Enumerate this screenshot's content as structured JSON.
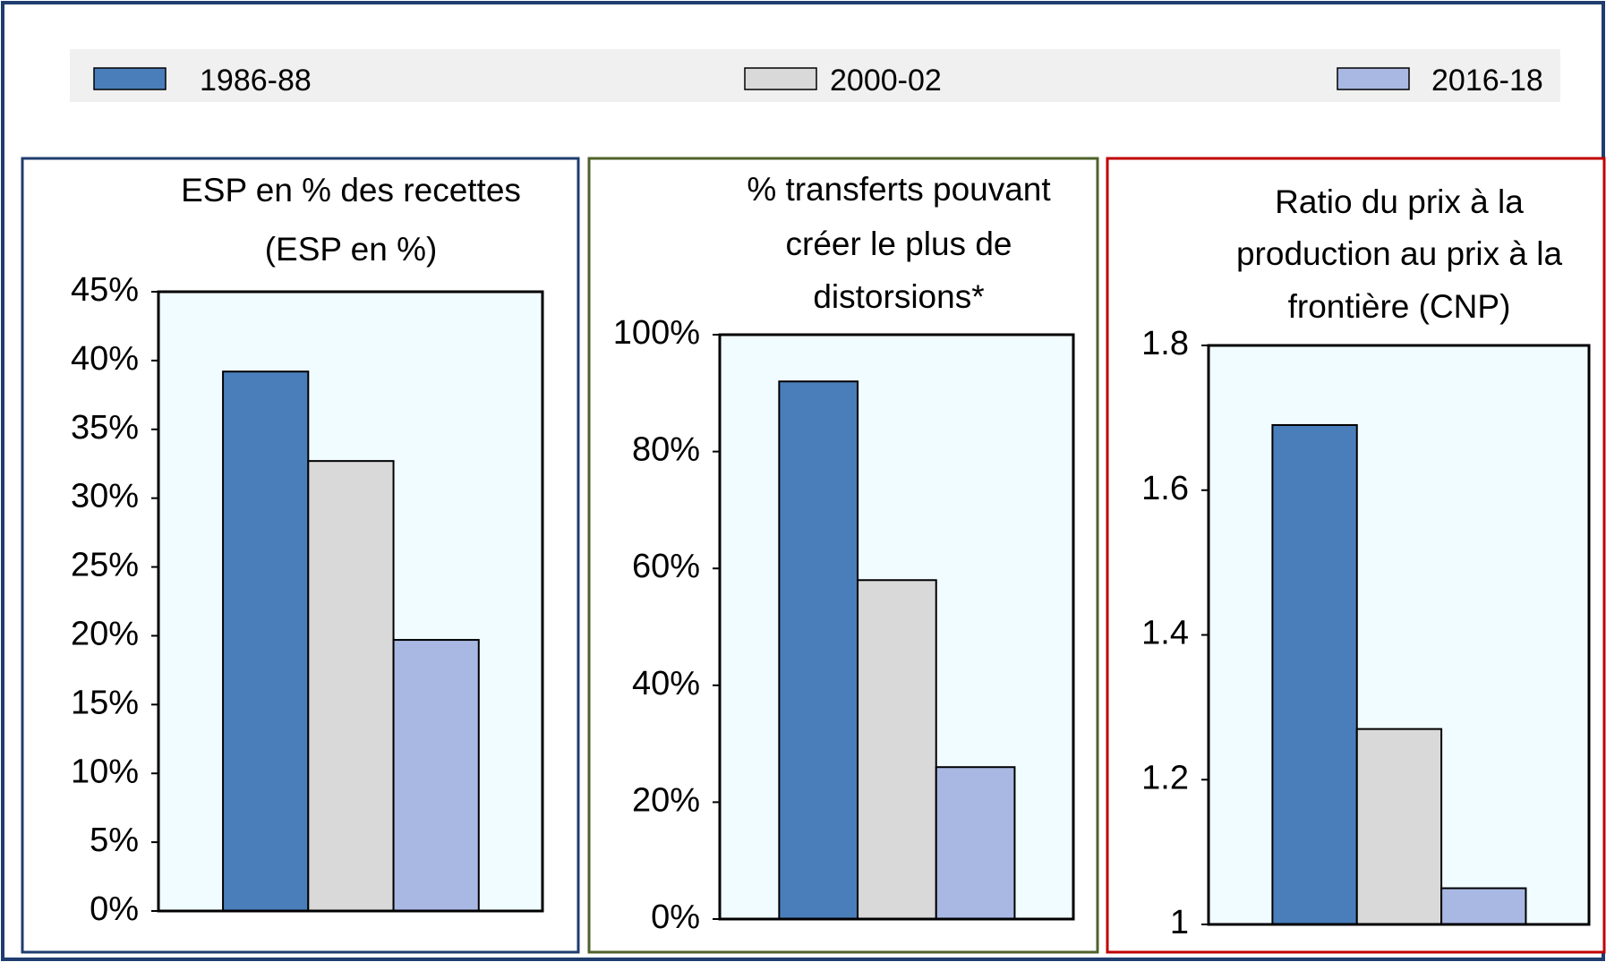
{
  "chart_data": [
    {
      "type": "bar",
      "title": [
        "ESP en % des recettes",
        "(ESP en %)"
      ],
      "series": [
        {
          "name": "1986-88",
          "color": "#4a7ebb",
          "values": [
            39.2
          ]
        },
        {
          "name": "2000-02",
          "color": "#d9d9d9",
          "values": [
            32.7
          ]
        },
        {
          "name": "2016-18",
          "color": "#a9b8e3",
          "values": [
            19.7
          ]
        }
      ],
      "ylim": [
        0,
        45
      ],
      "yticks": [
        {
          "value": 0,
          "label": "0%"
        },
        {
          "value": 5,
          "label": "5%"
        },
        {
          "value": 10,
          "label": "10%"
        },
        {
          "value": 15,
          "label": "15%"
        },
        {
          "value": 20,
          "label": "20%"
        },
        {
          "value": 25,
          "label": "25%"
        },
        {
          "value": 30,
          "label": "30%"
        },
        {
          "value": 35,
          "label": "35%"
        },
        {
          "value": 40,
          "label": "40%"
        },
        {
          "value": 45,
          "label": "45%"
        }
      ],
      "border_color": "#1f3d6e"
    },
    {
      "type": "bar",
      "title": [
        "% transferts pouvant",
        "créer le plus de",
        "distorsions*"
      ],
      "series": [
        {
          "color": "#4a7ebb",
          "values": [
            92
          ]
        },
        {
          "color": "#d9d9d9",
          "values": [
            58
          ]
        },
        {
          "color": "#a9b8e3",
          "values": [
            26
          ]
        }
      ],
      "ylim": [
        0,
        100
      ],
      "yticks": [
        {
          "value": 0,
          "label": "0%"
        },
        {
          "value": 20,
          "label": "20%"
        },
        {
          "value": 40,
          "label": "40%"
        },
        {
          "value": 60,
          "label": "60%"
        },
        {
          "value": 80,
          "label": "80%"
        },
        {
          "value": 100,
          "label": "100%"
        }
      ],
      "border_color": "#4f6228"
    },
    {
      "type": "bar",
      "title": [
        "Ratio du prix à la",
        "production au prix à la",
        "frontière (CNP)"
      ],
      "series": [
        {
          "color": "#4a7ebb",
          "values": [
            1.69
          ]
        },
        {
          "color": "#d9d9d9",
          "values": [
            1.27
          ]
        },
        {
          "color": "#a9b8e3",
          "values": [
            1.05
          ]
        }
      ],
      "ylim": [
        1,
        1.8
      ],
      "yticks": [
        1,
        1.2,
        1.4,
        1.6,
        1.8
      ],
      "border_color": "#c00000"
    }
  ]
}
